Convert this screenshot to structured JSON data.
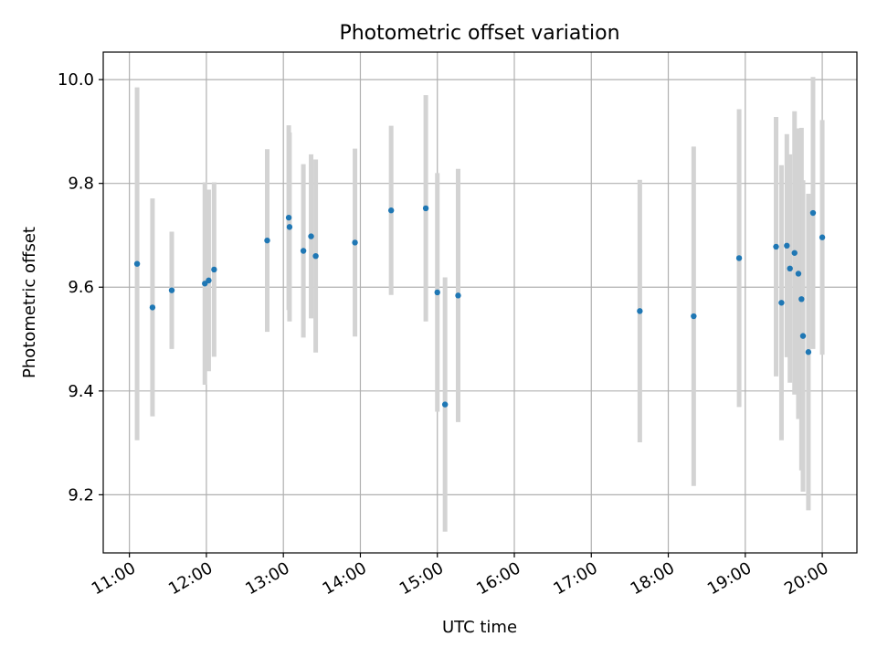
{
  "chart_data": {
    "type": "scatter",
    "title": "Photometric offset variation",
    "xlabel": "UTC time",
    "ylabel": "Photometric offset",
    "x_unit": "hours",
    "xlim": [
      10.66,
      20.45
    ],
    "ylim": [
      9.088,
      10.053
    ],
    "x_ticks": [
      11,
      12,
      13,
      14,
      15,
      16,
      17,
      18,
      19,
      20
    ],
    "x_tick_labels": [
      "11:00",
      "12:00",
      "13:00",
      "14:00",
      "15:00",
      "16:00",
      "17:00",
      "18:00",
      "19:00",
      "20:00"
    ],
    "y_ticks": [
      9.2,
      9.4,
      9.6,
      9.8,
      10.0
    ],
    "y_tick_labels": [
      "9.2",
      "9.4",
      "9.6",
      "9.8",
      "10.0"
    ],
    "grid": true,
    "marker_color": "#1f77b4",
    "errorbar_color": "#d3d3d3",
    "points": [
      {
        "x": 11.1,
        "y": 9.645,
        "yerr": 0.34
      },
      {
        "x": 11.3,
        "y": 9.561,
        "yerr": 0.21
      },
      {
        "x": 11.55,
        "y": 9.594,
        "yerr": 0.113
      },
      {
        "x": 11.98,
        "y": 9.607,
        "yerr": 0.195
      },
      {
        "x": 12.03,
        "y": 9.613,
        "yerr": 0.175
      },
      {
        "x": 12.1,
        "y": 9.634,
        "yerr": 0.168
      },
      {
        "x": 12.79,
        "y": 9.69,
        "yerr": 0.176
      },
      {
        "x": 13.07,
        "y": 9.734,
        "yerr": 0.178
      },
      {
        "x": 13.08,
        "y": 9.716,
        "yerr": 0.182
      },
      {
        "x": 13.26,
        "y": 9.67,
        "yerr": 0.167
      },
      {
        "x": 13.36,
        "y": 9.698,
        "yerr": 0.158
      },
      {
        "x": 13.42,
        "y": 9.66,
        "yerr": 0.186
      },
      {
        "x": 13.93,
        "y": 9.686,
        "yerr": 0.181
      },
      {
        "x": 14.4,
        "y": 9.748,
        "yerr": 0.163
      },
      {
        "x": 14.85,
        "y": 9.752,
        "yerr": 0.218
      },
      {
        "x": 15.0,
        "y": 9.59,
        "yerr": 0.23
      },
      {
        "x": 15.1,
        "y": 9.374,
        "yerr": 0.245
      },
      {
        "x": 15.27,
        "y": 9.584,
        "yerr": 0.244
      },
      {
        "x": 17.63,
        "y": 9.554,
        "yerr": 0.253
      },
      {
        "x": 18.33,
        "y": 9.544,
        "yerr": 0.327
      },
      {
        "x": 18.92,
        "y": 9.656,
        "yerr": 0.287
      },
      {
        "x": 19.4,
        "y": 9.678,
        "yerr": 0.25
      },
      {
        "x": 19.47,
        "y": 9.57,
        "yerr": 0.265
      },
      {
        "x": 19.54,
        "y": 9.68,
        "yerr": 0.215
      },
      {
        "x": 19.58,
        "y": 9.636,
        "yerr": 0.22
      },
      {
        "x": 19.64,
        "y": 9.666,
        "yerr": 0.273
      },
      {
        "x": 19.69,
        "y": 9.626,
        "yerr": 0.28
      },
      {
        "x": 19.73,
        "y": 9.577,
        "yerr": 0.33
      },
      {
        "x": 19.75,
        "y": 9.506,
        "yerr": 0.3
      },
      {
        "x": 19.82,
        "y": 9.475,
        "yerr": 0.305
      },
      {
        "x": 19.88,
        "y": 9.743,
        "yerr": 0.262
      },
      {
        "x": 20.0,
        "y": 9.696,
        "yerr": 0.226
      }
    ]
  }
}
